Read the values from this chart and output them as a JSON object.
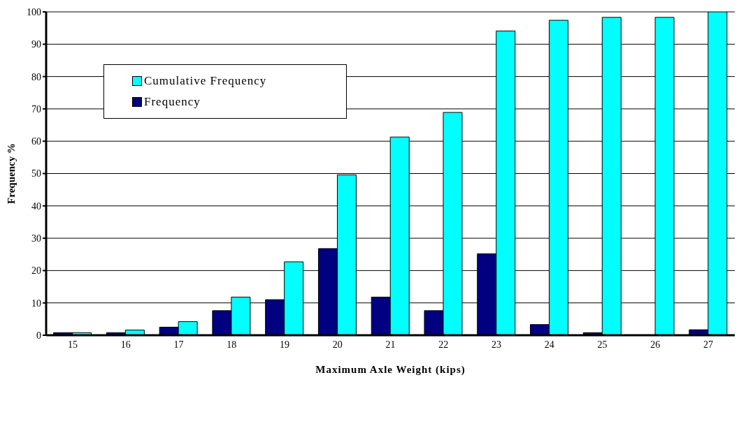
{
  "chart_data": {
    "type": "bar",
    "xlabel": "Maximum Axle Weight (kips)",
    "ylabel": "Frequency %",
    "categories": [
      "15",
      "16",
      "17",
      "18",
      "19",
      "20",
      "21",
      "22",
      "23",
      "24",
      "25",
      "26",
      "27"
    ],
    "series": [
      {
        "name": "Frequency",
        "color": "#000080",
        "values": [
          0.8,
          0.8,
          2.5,
          7.6,
          11,
          26.8,
          11.8,
          7.6,
          25.2,
          3.3,
          0.8,
          0,
          1.7
        ]
      },
      {
        "name": "Cumulative Frequency",
        "color": "#00ffff",
        "values": [
          0.8,
          1.6,
          4.2,
          11.8,
          22.7,
          49.6,
          61.3,
          68.9,
          94.1,
          97.4,
          98.3,
          98.3,
          100
        ]
      }
    ],
    "ylim": [
      0,
      100
    ],
    "yticks": [
      0,
      10,
      20,
      30,
      40,
      50,
      60,
      70,
      80,
      90,
      100
    ],
    "grid": "y",
    "legend": "top left"
  }
}
